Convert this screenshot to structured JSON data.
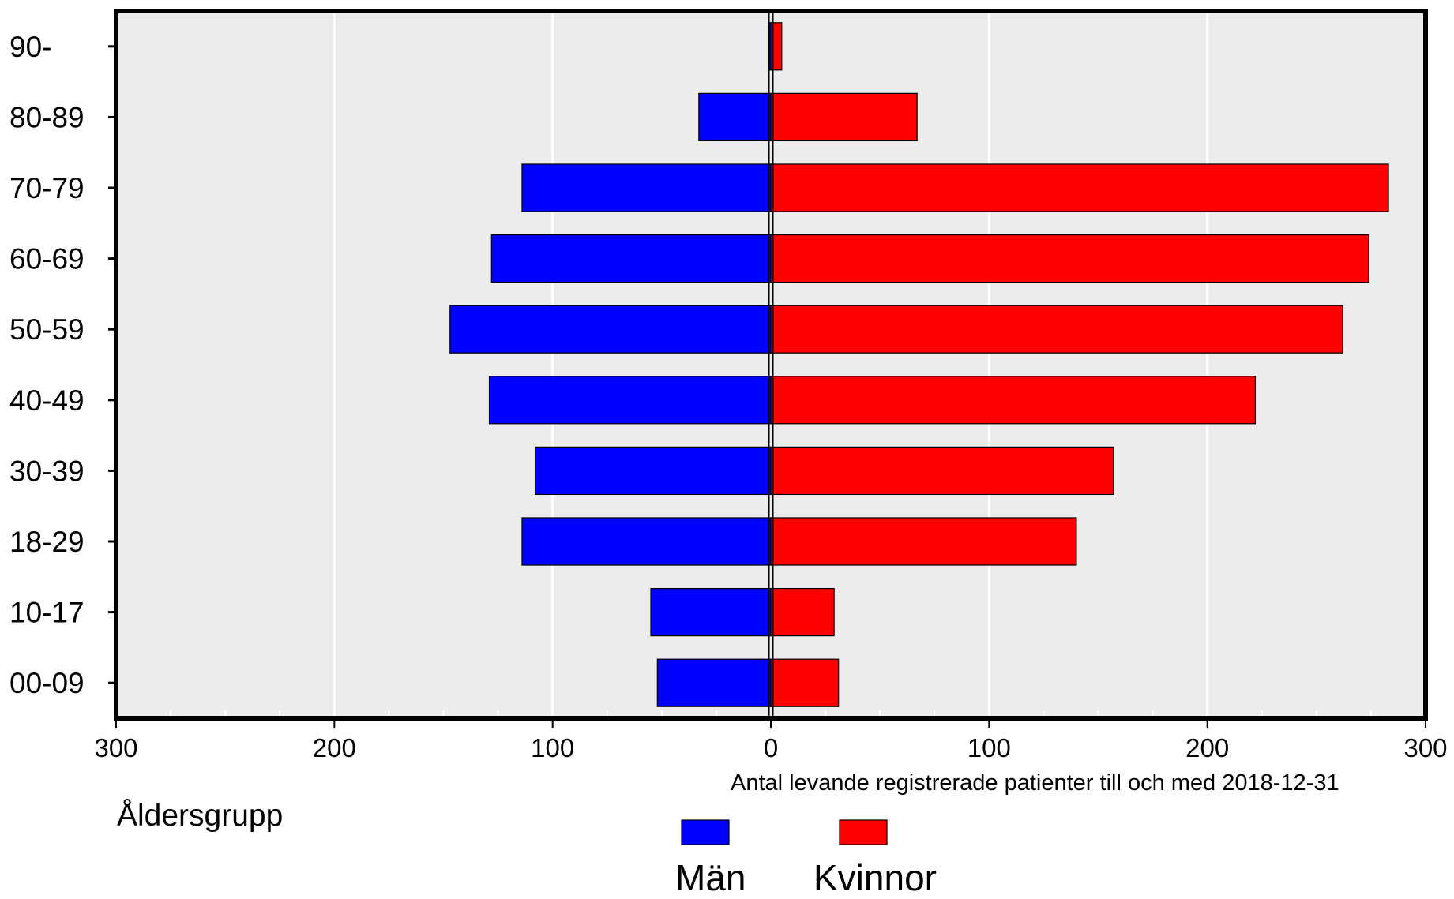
{
  "chart_data": {
    "type": "bar",
    "orientation": "horizontal",
    "subtype": "population-pyramid",
    "categories": [
      "90-",
      "80-89",
      "70-79",
      "60-69",
      "50-59",
      "40-49",
      "30-39",
      "18-29",
      "10-17",
      "00-09"
    ],
    "series": [
      {
        "name": "Män",
        "side": "left",
        "color": "#0000ff",
        "values": [
          1,
          33,
          114,
          128,
          147,
          129,
          108,
          114,
          55,
          52
        ]
      },
      {
        "name": "Kvinnor",
        "side": "right",
        "color": "#ff0000",
        "values": [
          5,
          67,
          283,
          274,
          262,
          222,
          157,
          140,
          29,
          31
        ]
      }
    ],
    "x_tick_labels": [
      "300",
      "200",
      "100",
      "0",
      "100",
      "200",
      "300"
    ],
    "xlim": [
      -300,
      300
    ],
    "xlabel": "Antal levande registrerade patienter till och med 2018-12-31",
    "ylabel": "Åldersgrupp",
    "grid": true,
    "legend": {
      "position": "bottom-center",
      "items": [
        "Män",
        "Kvinnor"
      ]
    },
    "colors": {
      "plot_background": "#ececec",
      "grid": "#ffffff",
      "frame": "#000000"
    }
  }
}
